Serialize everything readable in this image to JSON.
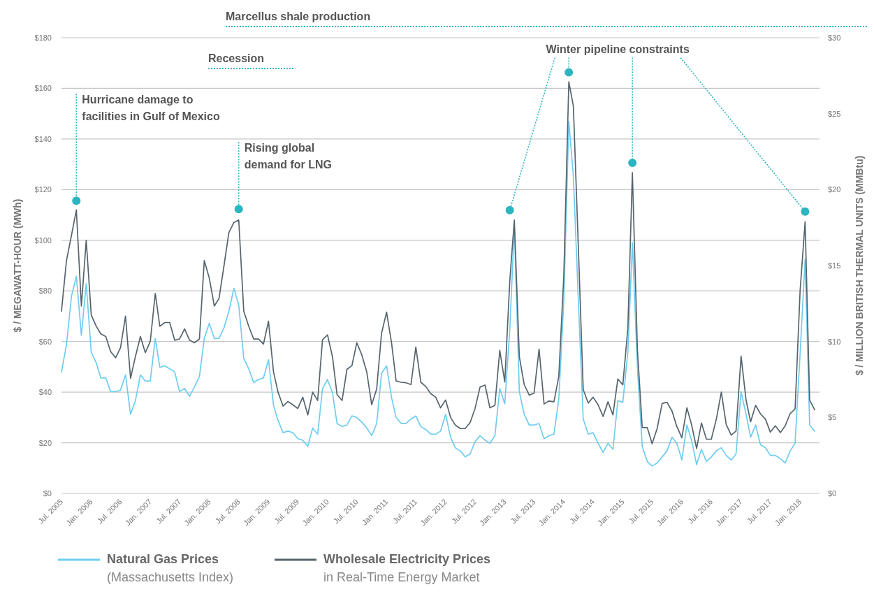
{
  "chart_data": {
    "type": "line",
    "ylabel": "$ / MEGAWATT-HOUR (MWh)",
    "y2label": "$ / MILLION BRITISH THERMAL UNITS (MMBtu)",
    "x": [
      "2005-07",
      "2005-08",
      "2005-09",
      "2005-10",
      "2005-11",
      "2005-12",
      "2006-01",
      "2006-02",
      "2006-03",
      "2006-04",
      "2006-05",
      "2006-06",
      "2006-07",
      "2006-08",
      "2006-09",
      "2006-10",
      "2006-11",
      "2006-12",
      "2007-01",
      "2007-02",
      "2007-03",
      "2007-04",
      "2007-05",
      "2007-06",
      "2007-07",
      "2007-08",
      "2007-09",
      "2007-10",
      "2007-11",
      "2007-12",
      "2008-01",
      "2008-02",
      "2008-03",
      "2008-04",
      "2008-05",
      "2008-06",
      "2008-07",
      "2008-08",
      "2008-09",
      "2008-10",
      "2008-11",
      "2008-12",
      "2009-01",
      "2009-02",
      "2009-03",
      "2009-04",
      "2009-05",
      "2009-06",
      "2009-07",
      "2009-08",
      "2009-09",
      "2009-10",
      "2009-11",
      "2009-12",
      "2010-01",
      "2010-02",
      "2010-03",
      "2010-04",
      "2010-05",
      "2010-06",
      "2010-07",
      "2010-08",
      "2010-09",
      "2010-10",
      "2010-11",
      "2010-12",
      "2011-01",
      "2011-02",
      "2011-03",
      "2011-04",
      "2011-05",
      "2011-06",
      "2011-07",
      "2011-08",
      "2011-09",
      "2011-10",
      "2011-11",
      "2011-12",
      "2012-01",
      "2012-02",
      "2012-03",
      "2012-04",
      "2012-05",
      "2012-06",
      "2012-07",
      "2012-08",
      "2012-09",
      "2012-10",
      "2012-11",
      "2012-12",
      "2013-01",
      "2013-02",
      "2013-03",
      "2013-04",
      "2013-05",
      "2013-06",
      "2013-07",
      "2013-08",
      "2013-09",
      "2013-10",
      "2013-11",
      "2013-12",
      "2014-01",
      "2014-02",
      "2014-03",
      "2014-04",
      "2014-05",
      "2014-06",
      "2014-07",
      "2014-08",
      "2014-09",
      "2014-10",
      "2014-11",
      "2014-12",
      "2015-01",
      "2015-02",
      "2015-03",
      "2015-04",
      "2015-05",
      "2015-06",
      "2015-07",
      "2015-08",
      "2015-09",
      "2015-10",
      "2015-11",
      "2015-12",
      "2016-01",
      "2016-02",
      "2016-03",
      "2016-04",
      "2016-05",
      "2016-06",
      "2016-07",
      "2016-08",
      "2016-09",
      "2016-10",
      "2016-11",
      "2016-12",
      "2017-01",
      "2017-02",
      "2017-03",
      "2017-04",
      "2017-05",
      "2017-06",
      "2017-07",
      "2017-08",
      "2017-09",
      "2017-10",
      "2017-11",
      "2017-12",
      "2018-01",
      "2018-02",
      "2018-03",
      "2018-04"
    ],
    "series": [
      {
        "name": "Natural Gas Prices",
        "color": "#6fcdf0",
        "axis": "y2",
        "values": [
          8.0,
          9.8,
          13.0,
          14.3,
          10.4,
          13.8,
          9.3,
          8.6,
          7.6,
          7.6,
          6.7,
          6.7,
          6.8,
          7.8,
          5.2,
          6.1,
          7.8,
          7.4,
          7.4,
          10.2,
          8.3,
          8.4,
          8.2,
          8.0,
          6.7,
          6.9,
          6.4,
          7.0,
          7.7,
          10.2,
          11.2,
          10.2,
          10.2,
          10.9,
          12.0,
          13.5,
          12.4,
          8.9,
          8.2,
          7.3,
          7.5,
          7.6,
          8.8,
          5.8,
          4.8,
          4.0,
          4.1,
          4.0,
          3.6,
          3.5,
          3.1,
          4.3,
          3.9,
          6.9,
          7.5,
          6.6,
          4.6,
          4.4,
          4.5,
          5.1,
          5.0,
          4.7,
          4.3,
          3.8,
          4.6,
          7.9,
          8.4,
          6.3,
          5.0,
          4.6,
          4.6,
          4.9,
          5.1,
          4.4,
          4.2,
          3.9,
          3.9,
          4.1,
          5.2,
          3.7,
          3.0,
          2.8,
          2.4,
          2.6,
          3.4,
          3.8,
          3.5,
          3.3,
          3.8,
          6.9,
          5.9,
          10.8,
          17.6,
          6.7,
          5.2,
          4.5,
          4.5,
          4.6,
          3.6,
          3.8,
          3.9,
          6.2,
          12.7,
          24.5,
          20.9,
          12.7,
          4.9,
          3.9,
          4.0,
          3.3,
          2.7,
          3.3,
          2.9,
          6.1,
          6.0,
          9.3,
          16.5,
          8.3,
          3.1,
          2.1,
          1.8,
          2.0,
          2.4,
          2.8,
          3.7,
          3.3,
          2.2,
          4.5,
          3.5,
          1.9,
          2.9,
          2.1,
          2.4,
          2.8,
          3.0,
          2.5,
          2.2,
          2.6,
          6.7,
          5.2,
          3.7,
          4.5,
          3.2,
          3.0,
          2.5,
          2.5,
          2.3,
          2.0,
          2.8,
          3.3,
          9.2,
          15.4,
          4.5,
          4.1
        ]
      },
      {
        "name": "Wholesale Electricity Prices",
        "color": "#56656d",
        "values": [
          72,
          92,
          102,
          112,
          74,
          100,
          70.5,
          66,
          63,
          62,
          56,
          53.6,
          57.5,
          70,
          45.5,
          54,
          62,
          55.6,
          60,
          79,
          66,
          67.5,
          67.5,
          60.5,
          61,
          65,
          60.5,
          59.5,
          61,
          92,
          85,
          74,
          77,
          90,
          103,
          107,
          108,
          72,
          66,
          61,
          61,
          59,
          68,
          48,
          40,
          34.5,
          36.3,
          35,
          33.5,
          38,
          31,
          40,
          36.7,
          60.7,
          62.6,
          53.8,
          39,
          36.7,
          49,
          50.5,
          59.5,
          54.7,
          47.8,
          35,
          41.3,
          63.2,
          71.6,
          59.4,
          44.4,
          43.9,
          43.7,
          43,
          57.8,
          43.9,
          42.2,
          39.4,
          38,
          33.8,
          36.9,
          30,
          27,
          25.6,
          25.6,
          28,
          33.5,
          42,
          42.8,
          33.8,
          34.8,
          56.5,
          44,
          84,
          108,
          54,
          43,
          38.8,
          39.6,
          57,
          35.3,
          36.5,
          36.2,
          46.2,
          86,
          162.6,
          153,
          97,
          41,
          35.7,
          38,
          35,
          30.4,
          36.2,
          31,
          45.2,
          42.9,
          65.3,
          126.7,
          56.8,
          26,
          26,
          19.6,
          25.6,
          35.5,
          36,
          32.5,
          26.4,
          22,
          33.8,
          27.2,
          17.7,
          27.8,
          21.4,
          21.4,
          29.3,
          40,
          27.2,
          23,
          24.6,
          54.2,
          36.8,
          28.3,
          34.8,
          31.4,
          29.3,
          24.2,
          26.7,
          24,
          26.7,
          31.6,
          33.3,
          80,
          107.3,
          36.8,
          33
        ]
      },
      {
        "type": "scatter",
        "marker": "circle",
        "color": "#2bb5c0",
        "x": [
          "2005-10",
          "2008-07",
          "2013-02",
          "2014-02",
          "2015-03",
          "2018-02"
        ],
        "values": [
          115.6,
          112.3,
          111.9,
          166.3,
          130.6,
          111.3
        ]
      }
    ],
    "xlim": [
      "2005-07",
      "2018-05"
    ],
    "xticks": [
      {
        "value": "2005-07",
        "label": "Jul. 2005"
      },
      {
        "value": "2006-01",
        "label": "Jan. 2006"
      },
      {
        "value": "2006-07",
        "label": "Jul. 2006"
      },
      {
        "value": "2007-01",
        "label": "Jan. 2007"
      },
      {
        "value": "2007-07",
        "label": "Jul. 2007"
      },
      {
        "value": "2008-01",
        "label": "Jan. 2008"
      },
      {
        "value": "2008-07",
        "label": "Jul. 2008"
      },
      {
        "value": "2009-01",
        "label": "Jan. 2009"
      },
      {
        "value": "2009-07",
        "label": "Jul. 2009"
      },
      {
        "value": "2010-01",
        "label": "Jan. 2010"
      },
      {
        "value": "2010-07",
        "label": "Jul. 2010"
      },
      {
        "value": "2011-01",
        "label": "Jan. 2011"
      },
      {
        "value": "2011-07",
        "label": "Jul. 2011"
      },
      {
        "value": "2012-01",
        "label": "Jan. 2012"
      },
      {
        "value": "2012-07",
        "label": "Jul. 2012"
      },
      {
        "value": "2013-01",
        "label": "Jan. 2013"
      },
      {
        "value": "2013-07",
        "label": "Jul. 2013"
      },
      {
        "value": "2014-01",
        "label": "Jan. 2014"
      },
      {
        "value": "2014-07",
        "label": "Jul. 2014"
      },
      {
        "value": "2015-01",
        "label": "Jan. 2015"
      },
      {
        "value": "2015-07",
        "label": "Jul. 2015"
      },
      {
        "value": "2016-01",
        "label": "Jan. 2016"
      },
      {
        "value": "2016-07",
        "label": "Jul. 2016"
      },
      {
        "value": "2017-01",
        "label": "Jan. 2017"
      },
      {
        "value": "2017-07",
        "label": "Jul. 2017"
      },
      {
        "value": "2018-01",
        "label": "Jan. 2018"
      }
    ],
    "ylim": [
      0,
      180
    ],
    "yticks": [
      {
        "value": 0,
        "label": "$0"
      },
      {
        "value": 20,
        "label": "$20"
      },
      {
        "value": 40,
        "label": "$40"
      },
      {
        "value": 60,
        "label": "$60"
      },
      {
        "value": 80,
        "label": "$80"
      },
      {
        "value": 100,
        "label": "$100"
      },
      {
        "value": 120,
        "label": "$120"
      },
      {
        "value": 140,
        "label": "$140"
      },
      {
        "value": 160,
        "label": "$160"
      },
      {
        "value": 180,
        "label": "$180"
      }
    ],
    "y2lim": [
      0,
      30
    ],
    "y2ticks": [
      {
        "value": 0,
        "label": "$0"
      },
      {
        "value": 5,
        "label": "$5"
      },
      {
        "value": 10,
        "label": "$10"
      },
      {
        "value": 15,
        "label": "$15"
      },
      {
        "value": 20,
        "label": "$20"
      },
      {
        "value": 25,
        "label": "$25"
      },
      {
        "value": 30,
        "label": "$30"
      }
    ],
    "annotations": [
      {
        "text": "Hurricane damage to facilities in Gulf of Mexico",
        "x": "2005-10",
        "y": 115.6
      },
      {
        "text": "Rising global demand for LNG",
        "x": "2008-07",
        "y": 112.3
      },
      {
        "text": "Winter pipeline constraints",
        "x": "2014-02",
        "y": 166.3
      },
      "Marcellus shale production",
      "Recession",
      "(Massachusetts Index)",
      "in Real-Time Energy Market"
    ],
    "grid": "y",
    "legend": "bottom left",
    "line_style": "solid",
    "marker": "none"
  }
}
